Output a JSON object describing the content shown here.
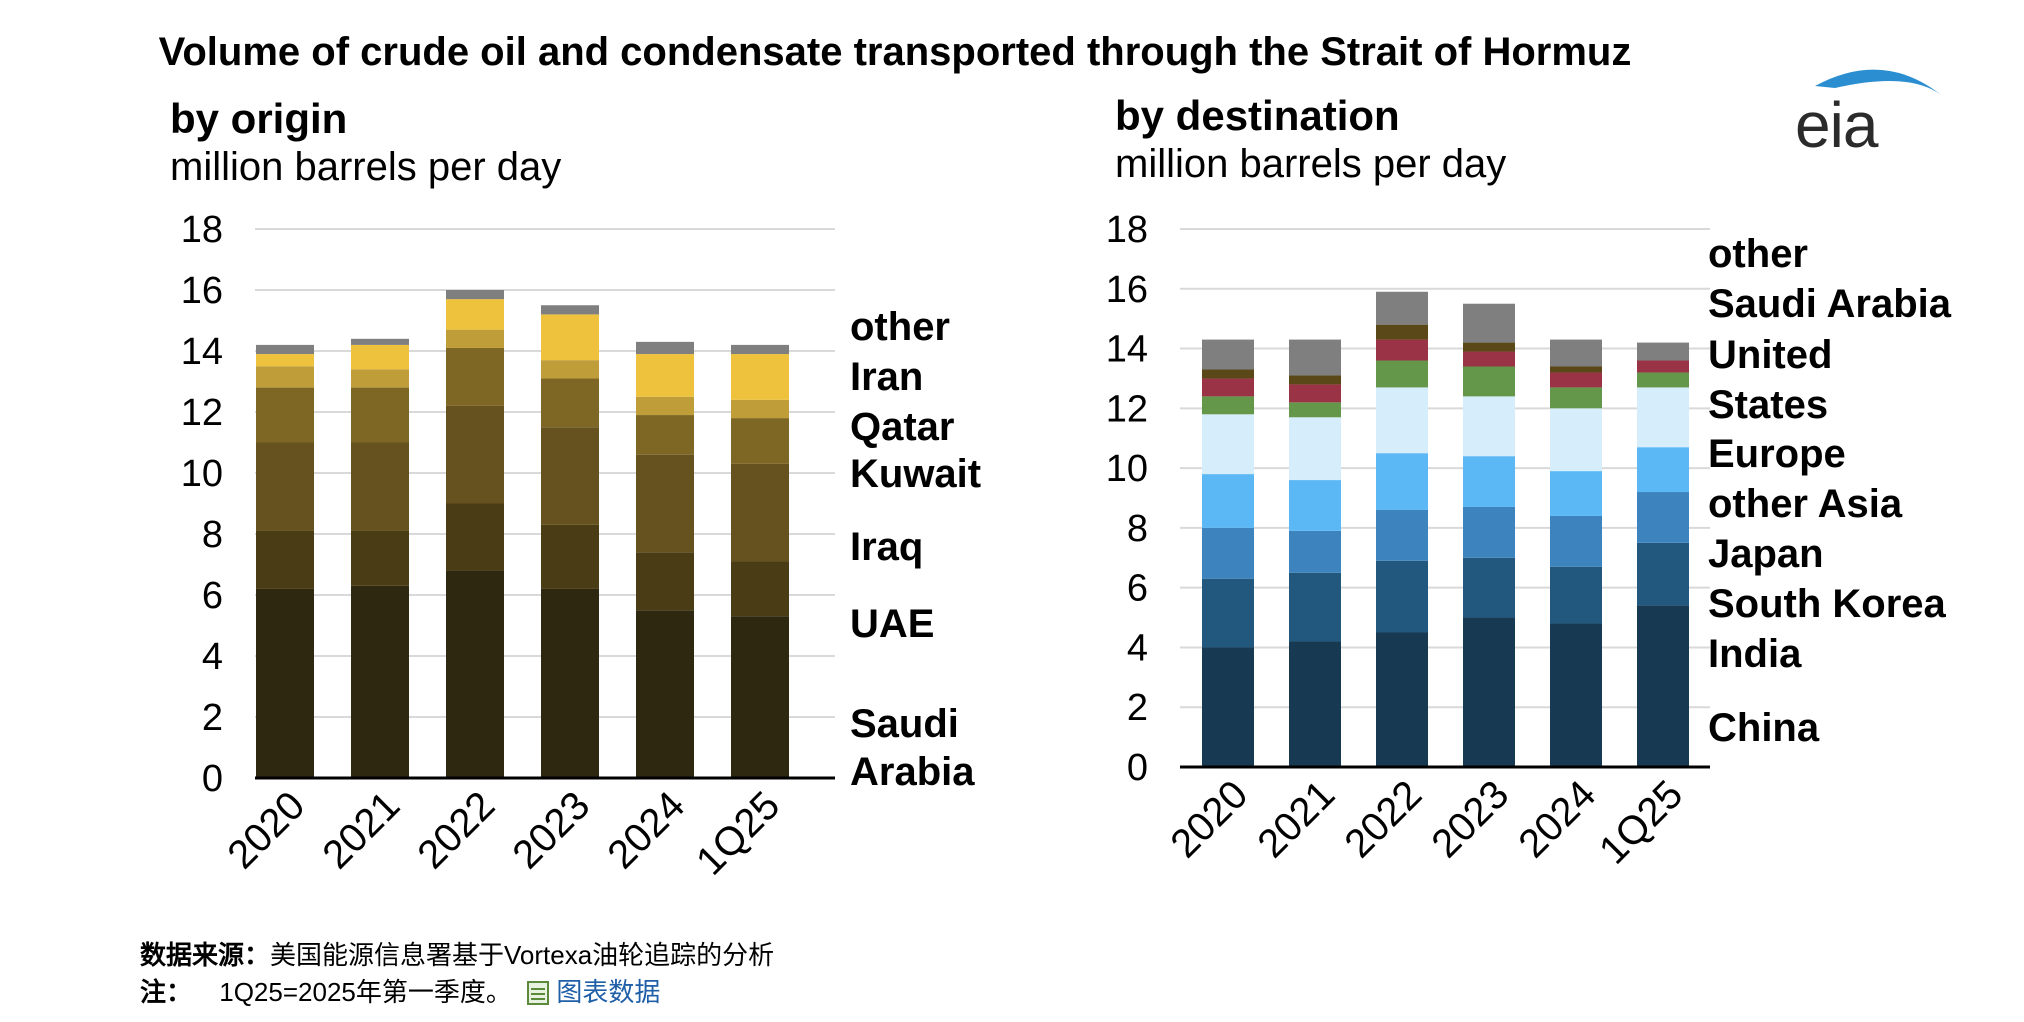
{
  "title": "Volume of crude oil and condensate transported through the Strait of Hormuz",
  "logo_text": "eia",
  "footer": {
    "source_label": "数据来源：",
    "source_text": "美国能源信息署基于Vortexa油轮追踪的分析",
    "note_label": "注：",
    "note_text": "1Q25=2025年第一季度。",
    "link_text": "图表数据"
  },
  "chart_data": [
    {
      "type": "bar",
      "stacked": true,
      "title": "by origin",
      "ylabel": "million barrels per day",
      "ylim": [
        0,
        18
      ],
      "yticks": [
        "0",
        "2",
        "4",
        "6",
        "8",
        "10",
        "12",
        "14",
        "16",
        "18"
      ],
      "categories": [
        "2020",
        "2021",
        "2022",
        "2023",
        "2024",
        "1Q25"
      ],
      "series": [
        {
          "name": "Saudi Arabia",
          "legend": "Saudi Arabia",
          "color": "#2f2810",
          "values": [
            6.2,
            6.3,
            6.8,
            6.2,
            5.5,
            5.3
          ]
        },
        {
          "name": "UAE",
          "legend": "UAE",
          "color": "#4a3d16",
          "values": [
            1.9,
            1.8,
            2.2,
            2.1,
            1.9,
            1.8
          ]
        },
        {
          "name": "Iraq",
          "legend": "Iraq",
          "color": "#66521e",
          "values": [
            2.9,
            2.9,
            3.2,
            3.2,
            3.2,
            3.2
          ]
        },
        {
          "name": "Kuwait",
          "legend": "Kuwait",
          "color": "#7e6725",
          "values": [
            1.8,
            1.8,
            1.9,
            1.6,
            1.3,
            1.5
          ]
        },
        {
          "name": "Qatar",
          "legend": "Qatar",
          "color": "#bf9d38",
          "values": [
            0.7,
            0.6,
            0.6,
            0.6,
            0.6,
            0.6
          ]
        },
        {
          "name": "Iran",
          "legend": "Iran",
          "color": "#efc23e",
          "values": [
            0.4,
            0.8,
            1.0,
            1.5,
            1.4,
            1.5
          ]
        },
        {
          "name": "other",
          "legend": "other",
          "color": "#7f7f7f",
          "values": [
            0.3,
            0.2,
            0.3,
            0.3,
            0.4,
            0.3
          ]
        }
      ]
    },
    {
      "type": "bar",
      "stacked": true,
      "title": "by destination",
      "ylabel": "million barrels per day",
      "ylim": [
        0,
        18
      ],
      "yticks": [
        "0",
        "2",
        "4",
        "6",
        "8",
        "10",
        "12",
        "14",
        "16",
        "18"
      ],
      "categories": [
        "2020",
        "2021",
        "2022",
        "2023",
        "2024",
        "1Q25"
      ],
      "series": [
        {
          "name": "China",
          "legend": "China",
          "color": "#173a52",
          "values": [
            4.0,
            4.2,
            4.5,
            5.0,
            4.8,
            5.4
          ]
        },
        {
          "name": "India",
          "legend": "India",
          "color": "#23587e",
          "values": [
            2.3,
            2.3,
            2.4,
            2.0,
            1.9,
            2.1
          ]
        },
        {
          "name": "South Korea",
          "legend": "South Korea",
          "color": "#3d84bf",
          "values": [
            1.7,
            1.4,
            1.7,
            1.7,
            1.7,
            1.7
          ]
        },
        {
          "name": "Japan",
          "legend": "Japan",
          "color": "#5bb8f5",
          "values": [
            1.8,
            1.7,
            1.9,
            1.7,
            1.5,
            1.5
          ]
        },
        {
          "name": "other Asia",
          "legend": "other Asia",
          "color": "#d6edfb",
          "values": [
            2.0,
            2.1,
            2.2,
            2.0,
            2.1,
            2.0
          ]
        },
        {
          "name": "Europe",
          "legend": "Europe",
          "color": "#64974a",
          "values": [
            0.6,
            0.5,
            0.9,
            1.0,
            0.7,
            0.5
          ]
        },
        {
          "name": "United States",
          "legend": "United States",
          "color": "#9b3346",
          "values": [
            0.6,
            0.6,
            0.7,
            0.5,
            0.5,
            0.4
          ]
        },
        {
          "name": "Saudi Arabia",
          "legend": "Saudi Arabia",
          "color": "#5a4818",
          "values": [
            0.3,
            0.3,
            0.5,
            0.3,
            0.2,
            0.0
          ]
        },
        {
          "name": "other",
          "legend": "other",
          "color": "#7f7f7f",
          "values": [
            1.0,
            1.2,
            1.1,
            1.3,
            0.9,
            0.6
          ]
        }
      ]
    }
  ]
}
